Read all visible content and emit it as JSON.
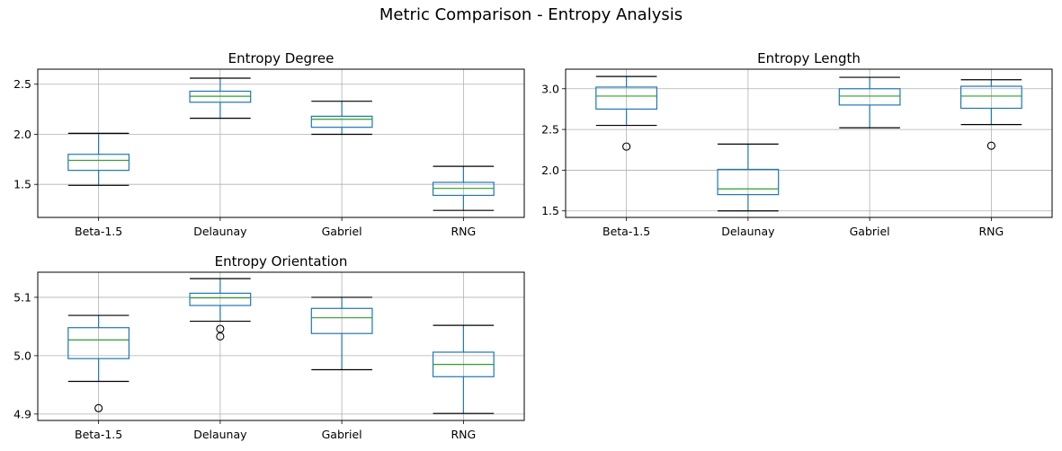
{
  "figure_title": "Metric Comparison - Entropy Analysis",
  "colors": {
    "box": "#1f77b4",
    "median": "#2ca02c",
    "whisker": "#1f77b4",
    "cap": "#000000",
    "grid": "#b0b0b0",
    "outlier": "#000000"
  },
  "chart_data": [
    {
      "type": "box",
      "title": "Entropy Degree",
      "categories": [
        "Beta-1.5",
        "Delaunay",
        "Gabriel",
        "RNG"
      ],
      "ylim": [
        1.17,
        2.65
      ],
      "yticks": [
        1.5,
        2.0,
        2.5
      ],
      "ytick_labels": [
        "1.5",
        "2.0",
        "2.5"
      ],
      "grid": true,
      "boxes": [
        {
          "whislo": 1.49,
          "q1": 1.64,
          "med": 1.74,
          "q3": 1.8,
          "whishi": 2.01,
          "fliers": []
        },
        {
          "whislo": 2.16,
          "q1": 2.32,
          "med": 2.38,
          "q3": 2.43,
          "whishi": 2.56,
          "fliers": []
        },
        {
          "whislo": 2.0,
          "q1": 2.07,
          "med": 2.15,
          "q3": 2.18,
          "whishi": 2.33,
          "fliers": []
        },
        {
          "whislo": 1.24,
          "q1": 1.39,
          "med": 1.46,
          "q3": 1.52,
          "whishi": 1.68,
          "fliers": []
        }
      ]
    },
    {
      "type": "box",
      "title": "Entropy Length",
      "categories": [
        "Beta-1.5",
        "Delaunay",
        "Gabriel",
        "RNG"
      ],
      "ylim": [
        1.42,
        3.24
      ],
      "yticks": [
        1.5,
        2.0,
        2.5,
        3.0
      ],
      "ytick_labels": [
        "1.5",
        "2.0",
        "2.5",
        "3.0"
      ],
      "grid": true,
      "boxes": [
        {
          "whislo": 2.55,
          "q1": 2.75,
          "med": 2.91,
          "q3": 3.02,
          "whishi": 3.15,
          "fliers": [
            2.29
          ]
        },
        {
          "whislo": 1.5,
          "q1": 1.7,
          "med": 1.77,
          "q3": 2.01,
          "whishi": 2.32,
          "fliers": []
        },
        {
          "whislo": 2.52,
          "q1": 2.8,
          "med": 2.91,
          "q3": 3.0,
          "whishi": 3.14,
          "fliers": []
        },
        {
          "whislo": 2.56,
          "q1": 2.76,
          "med": 2.91,
          "q3": 3.03,
          "whishi": 3.11,
          "fliers": [
            2.3
          ]
        }
      ]
    },
    {
      "type": "box",
      "title": "Entropy Orientation",
      "categories": [
        "Beta-1.5",
        "Delaunay",
        "Gabriel",
        "RNG"
      ],
      "ylim": [
        4.889,
        5.143
      ],
      "yticks": [
        4.9,
        5.0,
        5.1
      ],
      "ytick_labels": [
        "4.9",
        "5.0",
        "5.1"
      ],
      "grid": true,
      "boxes": [
        {
          "whislo": 4.956,
          "q1": 4.995,
          "med": 5.027,
          "q3": 5.048,
          "whishi": 5.069,
          "fliers": [
            4.91
          ]
        },
        {
          "whislo": 5.059,
          "q1": 5.086,
          "med": 5.099,
          "q3": 5.107,
          "whishi": 5.132,
          "fliers": [
            5.046,
            5.033
          ]
        },
        {
          "whislo": 4.976,
          "q1": 5.038,
          "med": 5.065,
          "q3": 5.081,
          "whishi": 5.1,
          "fliers": []
        },
        {
          "whislo": 4.901,
          "q1": 4.964,
          "med": 4.985,
          "q3": 5.006,
          "whishi": 5.052,
          "fliers": []
        }
      ]
    }
  ]
}
